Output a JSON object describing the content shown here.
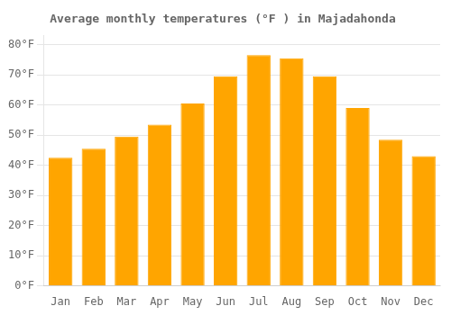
{
  "chart_data": {
    "type": "bar",
    "title": "Average monthly temperatures (°F ) in Majadahonda",
    "categories": [
      "Jan",
      "Feb",
      "Mar",
      "Apr",
      "May",
      "Jun",
      "Jul",
      "Aug",
      "Sep",
      "Oct",
      "Nov",
      "Dec"
    ],
    "values": [
      42.5,
      45.5,
      49.5,
      53.5,
      60.5,
      69.5,
      76.5,
      75.5,
      69.5,
      59.0,
      48.5,
      43.0
    ],
    "color": "#FFA500",
    "ylim": [
      0,
      83
    ],
    "yticks": [
      {
        "value": 0,
        "label": "0°F"
      },
      {
        "value": 10,
        "label": "10°F"
      },
      {
        "value": 20,
        "label": "20°F"
      },
      {
        "value": 30,
        "label": "30°F"
      },
      {
        "value": 40,
        "label": "40°F"
      },
      {
        "value": 50,
        "label": "50°F"
      },
      {
        "value": 60,
        "label": "60°F"
      },
      {
        "value": 70,
        "label": "70°F"
      },
      {
        "value": 80,
        "label": "80°F"
      }
    ],
    "grid": true
  }
}
